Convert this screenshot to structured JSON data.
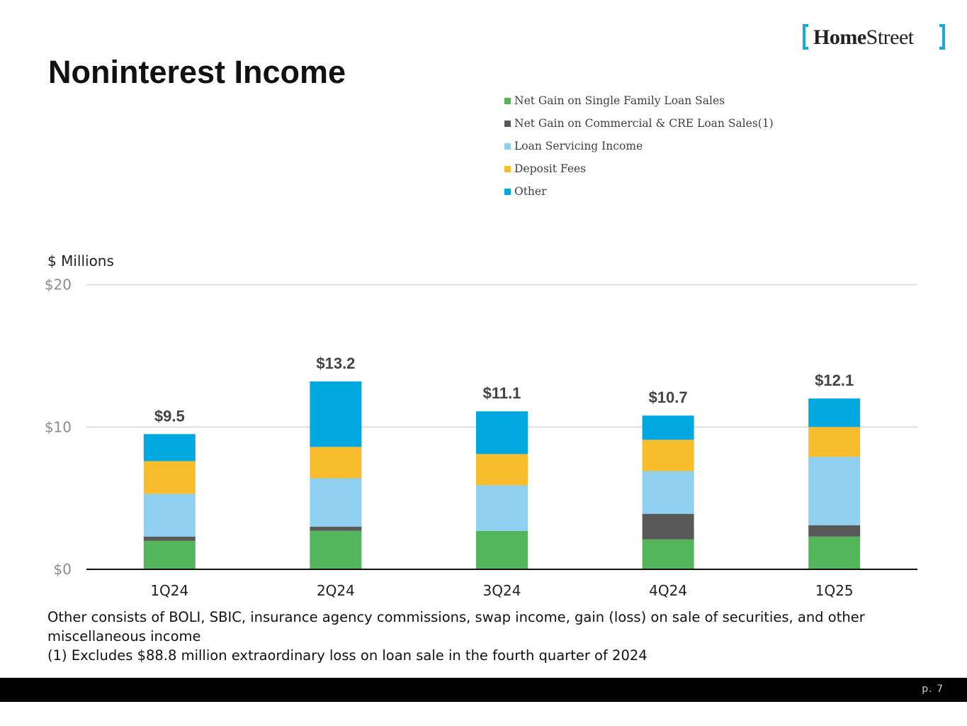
{
  "brand": {
    "name_bold": "Home",
    "name_light": "Street",
    "accent_color": "#1aa7dc"
  },
  "slide": {
    "title": "Noninterest Income",
    "page_label": "p. 7"
  },
  "chart_data": {
    "type": "bar",
    "stacked": true,
    "ylabel": "$ Millions",
    "ylim": [
      0,
      20
    ],
    "yticks": [
      0,
      10,
      20
    ],
    "ytick_labels": [
      "$0",
      "$10",
      "$20"
    ],
    "categories": [
      "1Q24",
      "2Q24",
      "3Q24",
      "4Q24",
      "1Q25"
    ],
    "totals": [
      9.5,
      13.2,
      11.1,
      10.7,
      12.1
    ],
    "total_labels": [
      "$9.5",
      "$13.2",
      "$11.1",
      "$10.7",
      "$12.1"
    ],
    "legend_position": "top-right",
    "series": [
      {
        "name": "Net Gain on Single Family Loan Sales",
        "color": "#53b65b",
        "values": [
          2.0,
          2.7,
          2.7,
          2.1,
          2.3
        ]
      },
      {
        "name": "Net Gain on Commercial & CRE Loan Sales(1)",
        "color": "#595959",
        "values": [
          0.3,
          0.3,
          0.0,
          1.8,
          0.8
        ]
      },
      {
        "name": "Loan Servicing Income",
        "color": "#8fcfef",
        "values": [
          3.0,
          3.4,
          3.2,
          3.0,
          4.8
        ]
      },
      {
        "name": "Deposit Fees",
        "color": "#f7bd2c",
        "values": [
          2.3,
          2.2,
          2.2,
          2.2,
          2.1
        ]
      },
      {
        "name": "Other",
        "color": "#00a8e0",
        "values": [
          1.9,
          4.6,
          3.0,
          1.7,
          2.0
        ]
      }
    ]
  },
  "footnotes": [
    "Other consists of BOLI, SBIC, insurance agency commissions, swap income, gain (loss) on sale of securities, and other miscellaneous income",
    "(1) Excludes $88.8 million extraordinary loss on loan sale in the fourth quarter of 2024"
  ]
}
